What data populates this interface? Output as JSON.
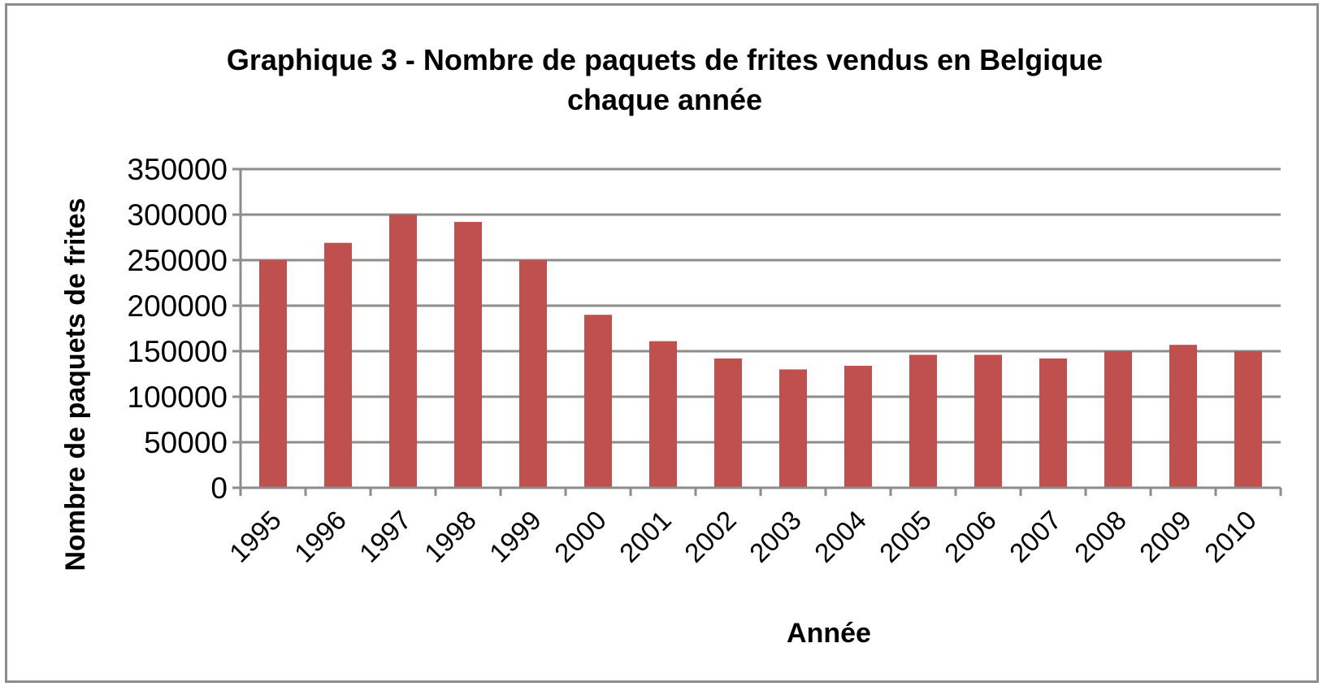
{
  "chart_data": {
    "type": "bar",
    "title_lines": [
      "Graphique 3 - Nombre de paquets de frites vendus en Belgique",
      "chaque année"
    ],
    "xlabel": "Année",
    "ylabel": "Nombre de paquets de frites",
    "categories": [
      "1995",
      "1996",
      "1997",
      "1998",
      "1999",
      "2000",
      "2001",
      "2002",
      "2003",
      "2004",
      "2005",
      "2006",
      "2007",
      "2008",
      "2009",
      "2010"
    ],
    "values": [
      250000,
      269000,
      300000,
      292000,
      250000,
      190000,
      161000,
      142000,
      130000,
      134000,
      146000,
      146000,
      142000,
      150000,
      157000,
      150000
    ],
    "ylim": [
      0,
      350000
    ],
    "yticks": [
      "0",
      "50000",
      "100000",
      "150000",
      "200000",
      "250000",
      "300000",
      "350000"
    ],
    "grid": true,
    "legend": "none",
    "bar_color": "#c0504d",
    "grid_color": "#8c8c8c"
  }
}
